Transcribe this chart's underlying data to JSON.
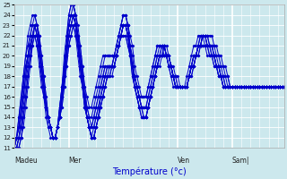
{
  "xlabel": "Température (°c)",
  "bg_color": "#cce8ed",
  "plot_bg_color": "#cce8ed",
  "line_color": "#0000cc",
  "marker": "D",
  "ylim": [
    11,
    25
  ],
  "yticks": [
    11,
    12,
    13,
    14,
    15,
    16,
    17,
    18,
    19,
    20,
    21,
    22,
    23,
    24,
    25
  ],
  "day_labels": [
    "Madeu",
    "Mer",
    "Ven",
    "Sam|"
  ],
  "day_positions": [
    0,
    24,
    72,
    96
  ],
  "num_points": 120,
  "grid_color": "#b0d8e0",
  "series": [
    [
      11,
      11,
      11,
      12,
      13,
      15,
      17,
      19,
      21,
      23,
      23,
      22,
      20,
      18,
      16,
      14,
      13,
      12,
      12,
      13,
      14,
      16,
      19,
      21,
      24,
      25,
      25,
      24,
      23,
      21,
      19,
      17,
      16,
      15,
      15,
      16,
      17,
      18,
      19,
      20,
      20,
      20,
      20,
      20,
      20,
      21,
      22,
      23,
      24,
      24,
      23,
      22,
      21,
      19,
      18,
      17,
      16,
      16,
      16,
      17,
      18,
      19,
      20,
      21,
      21,
      21,
      21,
      21,
      20,
      19,
      19,
      18,
      18,
      17,
      17,
      17,
      18,
      19,
      20,
      21,
      21,
      22,
      22,
      22,
      22,
      22,
      22,
      22,
      21,
      21,
      20,
      20,
      19,
      19,
      18,
      17,
      17,
      17,
      17,
      17,
      17,
      17,
      17,
      17,
      17,
      17,
      17,
      17,
      17,
      17,
      17,
      17,
      17,
      17,
      17,
      17,
      17,
      17,
      17,
      17
    ],
    [
      11,
      11,
      11,
      12,
      14,
      16,
      18,
      20,
      22,
      23,
      23,
      22,
      20,
      18,
      16,
      14,
      13,
      12,
      12,
      13,
      15,
      17,
      20,
      22,
      24,
      25,
      25,
      24,
      22,
      21,
      19,
      17,
      15,
      14,
      14,
      15,
      16,
      17,
      18,
      19,
      20,
      20,
      20,
      20,
      20,
      21,
      22,
      23,
      24,
      24,
      23,
      21,
      20,
      18,
      17,
      16,
      16,
      16,
      16,
      17,
      18,
      19,
      20,
      21,
      21,
      21,
      21,
      20,
      20,
      19,
      18,
      18,
      17,
      17,
      17,
      17,
      17,
      18,
      19,
      20,
      20,
      21,
      22,
      22,
      22,
      22,
      21,
      21,
      21,
      20,
      20,
      19,
      19,
      18,
      18,
      17,
      17,
      17,
      17,
      17,
      17,
      17,
      17,
      17,
      17,
      17,
      17,
      17,
      17,
      17,
      17,
      17,
      17,
      17,
      17,
      17,
      17,
      17,
      17,
      17
    ],
    [
      11,
      11,
      12,
      13,
      14,
      16,
      18,
      20,
      21,
      22,
      22,
      21,
      19,
      17,
      15,
      14,
      13,
      12,
      12,
      13,
      15,
      17,
      19,
      21,
      23,
      24,
      24,
      23,
      22,
      20,
      18,
      16,
      15,
      14,
      13,
      14,
      15,
      16,
      17,
      18,
      19,
      19,
      19,
      19,
      19,
      20,
      21,
      22,
      23,
      23,
      22,
      21,
      19,
      18,
      17,
      16,
      15,
      15,
      15,
      16,
      17,
      18,
      19,
      20,
      21,
      21,
      20,
      20,
      19,
      19,
      18,
      18,
      17,
      17,
      17,
      17,
      17,
      18,
      19,
      20,
      20,
      21,
      21,
      22,
      22,
      21,
      21,
      21,
      20,
      20,
      19,
      19,
      18,
      18,
      17,
      17,
      17,
      17,
      17,
      17,
      17,
      17,
      17,
      17,
      17,
      17,
      17,
      17,
      17,
      17,
      17,
      17,
      17,
      17,
      17,
      17,
      17,
      17,
      17,
      17
    ],
    [
      11,
      11,
      12,
      13,
      15,
      17,
      19,
      21,
      22,
      23,
      22,
      21,
      19,
      17,
      15,
      14,
      13,
      12,
      12,
      13,
      14,
      16,
      18,
      21,
      23,
      24,
      24,
      23,
      21,
      20,
      18,
      16,
      14,
      13,
      13,
      14,
      15,
      16,
      17,
      18,
      19,
      19,
      19,
      19,
      20,
      20,
      21,
      22,
      23,
      23,
      22,
      20,
      19,
      18,
      17,
      16,
      15,
      15,
      15,
      16,
      17,
      18,
      19,
      20,
      20,
      21,
      21,
      20,
      20,
      19,
      18,
      17,
      17,
      17,
      17,
      17,
      17,
      18,
      19,
      20,
      20,
      21,
      21,
      22,
      21,
      21,
      21,
      20,
      20,
      19,
      19,
      18,
      18,
      17,
      17,
      17,
      17,
      17,
      17,
      17,
      17,
      17,
      17,
      17,
      17,
      17,
      17,
      17,
      17,
      17,
      17,
      17,
      17,
      17,
      17,
      17,
      17,
      17,
      17,
      17
    ],
    [
      11,
      11,
      12,
      14,
      16,
      18,
      20,
      21,
      22,
      23,
      22,
      20,
      19,
      17,
      15,
      14,
      13,
      12,
      12,
      13,
      14,
      16,
      18,
      20,
      22,
      23,
      24,
      23,
      21,
      19,
      17,
      16,
      14,
      13,
      13,
      13,
      14,
      15,
      16,
      17,
      18,
      19,
      19,
      19,
      20,
      20,
      21,
      22,
      23,
      23,
      22,
      20,
      19,
      17,
      16,
      15,
      15,
      15,
      15,
      15,
      16,
      17,
      18,
      19,
      20,
      20,
      21,
      20,
      20,
      19,
      18,
      17,
      17,
      17,
      17,
      17,
      17,
      18,
      19,
      19,
      20,
      21,
      21,
      21,
      21,
      21,
      20,
      20,
      20,
      19,
      19,
      18,
      17,
      17,
      17,
      17,
      17,
      17,
      17,
      17,
      17,
      17,
      17,
      17,
      17,
      17,
      17,
      17,
      17,
      17,
      17,
      17,
      17,
      17,
      17,
      17,
      17,
      17,
      17,
      17
    ],
    [
      11,
      12,
      13,
      14,
      16,
      18,
      20,
      21,
      22,
      22,
      21,
      20,
      18,
      16,
      15,
      14,
      13,
      12,
      12,
      13,
      14,
      15,
      17,
      19,
      21,
      22,
      23,
      22,
      21,
      19,
      17,
      15,
      14,
      13,
      12,
      13,
      14,
      15,
      16,
      17,
      18,
      18,
      19,
      19,
      19,
      20,
      21,
      22,
      22,
      22,
      21,
      20,
      18,
      17,
      16,
      15,
      15,
      15,
      15,
      15,
      16,
      17,
      18,
      19,
      20,
      20,
      20,
      20,
      19,
      19,
      18,
      17,
      17,
      17,
      17,
      17,
      17,
      18,
      18,
      19,
      20,
      20,
      21,
      21,
      21,
      21,
      20,
      20,
      19,
      19,
      18,
      18,
      17,
      17,
      17,
      17,
      17,
      17,
      17,
      17,
      17,
      17,
      17,
      17,
      17,
      17,
      17,
      17,
      17,
      17,
      17,
      17,
      17,
      17,
      17,
      17,
      17,
      17,
      17,
      17
    ],
    [
      11,
      12,
      13,
      15,
      17,
      19,
      20,
      21,
      22,
      22,
      21,
      19,
      17,
      16,
      14,
      13,
      12,
      12,
      12,
      13,
      14,
      15,
      17,
      19,
      21,
      22,
      23,
      22,
      20,
      18,
      17,
      15,
      14,
      13,
      12,
      12,
      13,
      14,
      15,
      16,
      17,
      18,
      18,
      18,
      19,
      20,
      21,
      22,
      22,
      22,
      21,
      20,
      18,
      17,
      16,
      15,
      14,
      14,
      14,
      15,
      16,
      17,
      18,
      19,
      19,
      20,
      20,
      20,
      19,
      18,
      18,
      17,
      17,
      17,
      17,
      17,
      17,
      18,
      18,
      19,
      20,
      20,
      21,
      21,
      21,
      20,
      20,
      20,
      19,
      19,
      18,
      18,
      17,
      17,
      17,
      17,
      17,
      17,
      17,
      17,
      17,
      17,
      17,
      17,
      17,
      17,
      17,
      17,
      17,
      17,
      17,
      17,
      17,
      17,
      17,
      17,
      17,
      17,
      17,
      17
    ],
    [
      11,
      12,
      13,
      15,
      17,
      19,
      20,
      22,
      23,
      24,
      23,
      21,
      19,
      17,
      15,
      14,
      13,
      12,
      12,
      13,
      14,
      16,
      18,
      20,
      22,
      23,
      24,
      23,
      21,
      19,
      18,
      16,
      14,
      13,
      12,
      12,
      13,
      14,
      15,
      16,
      17,
      18,
      18,
      19,
      19,
      20,
      21,
      22,
      23,
      23,
      22,
      21,
      19,
      18,
      17,
      16,
      15,
      14,
      14,
      15,
      16,
      17,
      18,
      19,
      20,
      20,
      20,
      20,
      19,
      18,
      17,
      17,
      17,
      17,
      17,
      17,
      17,
      18,
      19,
      19,
      20,
      21,
      21,
      22,
      22,
      21,
      21,
      21,
      20,
      19,
      19,
      18,
      18,
      17,
      17,
      17,
      17,
      17,
      17,
      17,
      17,
      17,
      17,
      17,
      17,
      17,
      17,
      17,
      17,
      17,
      17,
      17,
      17,
      17,
      17,
      17,
      17,
      17,
      17,
      17
    ],
    [
      11,
      12,
      14,
      16,
      18,
      20,
      21,
      22,
      23,
      23,
      22,
      20,
      18,
      16,
      15,
      13,
      13,
      12,
      12,
      13,
      14,
      16,
      18,
      20,
      22,
      23,
      24,
      23,
      21,
      19,
      17,
      15,
      14,
      13,
      12,
      12,
      13,
      14,
      15,
      16,
      17,
      18,
      18,
      19,
      19,
      20,
      21,
      22,
      23,
      23,
      22,
      20,
      19,
      17,
      16,
      15,
      14,
      14,
      14,
      15,
      16,
      17,
      18,
      19,
      20,
      20,
      21,
      20,
      20,
      19,
      18,
      17,
      17,
      17,
      17,
      17,
      17,
      18,
      19,
      19,
      20,
      21,
      21,
      22,
      22,
      21,
      21,
      20,
      20,
      19,
      18,
      18,
      17,
      17,
      17,
      17,
      17,
      17,
      17,
      17,
      17,
      17,
      17,
      17,
      17,
      17,
      17,
      17,
      17,
      17,
      17,
      17,
      17,
      17,
      17,
      17,
      17,
      17,
      17,
      17
    ],
    [
      11,
      12,
      14,
      16,
      18,
      20,
      22,
      23,
      24,
      24,
      23,
      21,
      19,
      17,
      15,
      14,
      13,
      12,
      12,
      13,
      15,
      17,
      19,
      21,
      23,
      24,
      25,
      24,
      22,
      20,
      18,
      16,
      14,
      13,
      12,
      12,
      13,
      14,
      16,
      17,
      18,
      19,
      19,
      19,
      20,
      21,
      22,
      23,
      24,
      24,
      23,
      21,
      19,
      18,
      17,
      16,
      15,
      14,
      14,
      15,
      16,
      17,
      18,
      19,
      20,
      21,
      21,
      20,
      20,
      19,
      18,
      17,
      17,
      17,
      17,
      17,
      17,
      18,
      19,
      20,
      20,
      21,
      22,
      22,
      22,
      22,
      21,
      21,
      20,
      19,
      19,
      18,
      17,
      17,
      17,
      17,
      17,
      17,
      17,
      17,
      17,
      17,
      17,
      17,
      17,
      17,
      17,
      17,
      17,
      17,
      17,
      17,
      17,
      17,
      17,
      17,
      17,
      17,
      17,
      17
    ]
  ]
}
